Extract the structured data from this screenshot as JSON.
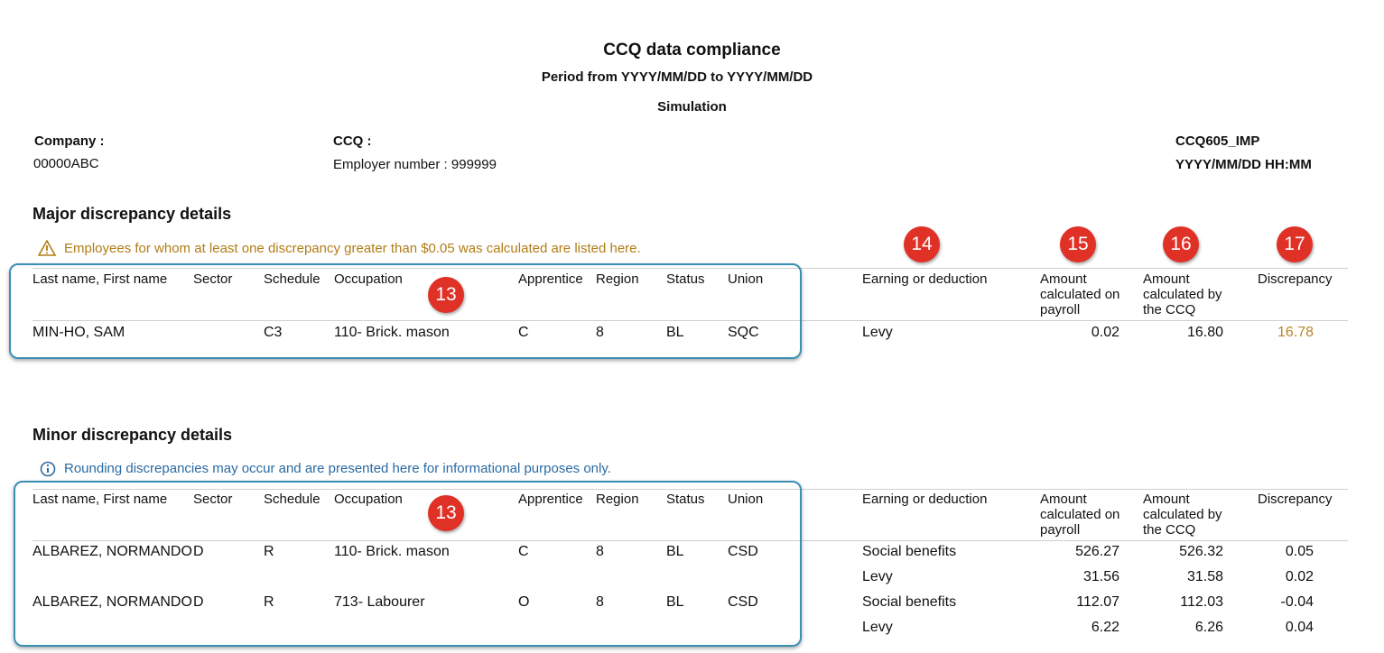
{
  "header": {
    "title": "CCQ data compliance",
    "period": "Period from YYYY/MM/DD to YYYY/MM/DD",
    "mode": "Simulation"
  },
  "info": {
    "company_label": "Company :",
    "company": "00000ABC",
    "ccq_label": "CCQ :",
    "employer": "Employer number : 999999",
    "report_id": "CCQ605_IMP",
    "datetime": "YYYY/MM/DD HH:MM"
  },
  "sections": [
    {
      "title": "Major discrepancy details",
      "note": "Employees for whom at least one discrepancy greater than $0.05 was calculated are listed here.",
      "callouts": {
        "employee": 13,
        "detail": [
          14,
          15,
          16,
          17
        ]
      },
      "employee_columns": [
        "Last name, First name",
        "Sector",
        "Schedule",
        "Occupation",
        "Apprentice",
        "Region",
        "Status",
        "Union"
      ],
      "detail_columns": [
        "Earning or deduction",
        "Amount calculated on payroll",
        "Amount calculated by the CCQ",
        "Discrepancy"
      ],
      "rows": [
        {
          "employee": [
            "MIN-HO, SAM",
            null,
            "C3",
            "110- Brick. mason",
            "C",
            "8",
            "BL",
            "SQC"
          ],
          "lines": [
            [
              "Levy",
              "0.02",
              "16.80",
              "16.78"
            ]
          ]
        }
      ]
    },
    {
      "title": "Minor discrepancy details",
      "note": "Rounding discrepancies may occur and are presented here for informational purposes only.",
      "callouts": {
        "employee": 13
      },
      "employee_columns": [
        "Last name, First name",
        "Sector",
        "Schedule",
        "Occupation",
        "Apprentice",
        "Region",
        "Status",
        "Union"
      ],
      "detail_columns": [
        "Earning or deduction",
        "Amount calculated on payroll",
        "Amount calculated by the CCQ",
        "Discrepancy"
      ],
      "rows": [
        {
          "employee": [
            "ALBAREZ, NORMANDO",
            "D",
            "R",
            "110- Brick. mason",
            "C",
            "8",
            "BL",
            "CSD"
          ],
          "lines": [
            [
              "Social benefits",
              "526.27",
              "526.32",
              "0.05"
            ],
            [
              "Levy",
              "31.56",
              "31.58",
              "0.02"
            ]
          ]
        },
        {
          "employee": [
            "ALBAREZ, NORMANDO",
            "D",
            "R",
            "713- Labourer",
            "O",
            "8",
            "BL",
            "CSD"
          ],
          "lines": [
            [
              "Social benefits",
              "112.07",
              "112.03",
              "-0.04"
            ],
            [
              "Levy",
              "6.22",
              "6.26",
              "0.04"
            ]
          ]
        }
      ]
    }
  ]
}
